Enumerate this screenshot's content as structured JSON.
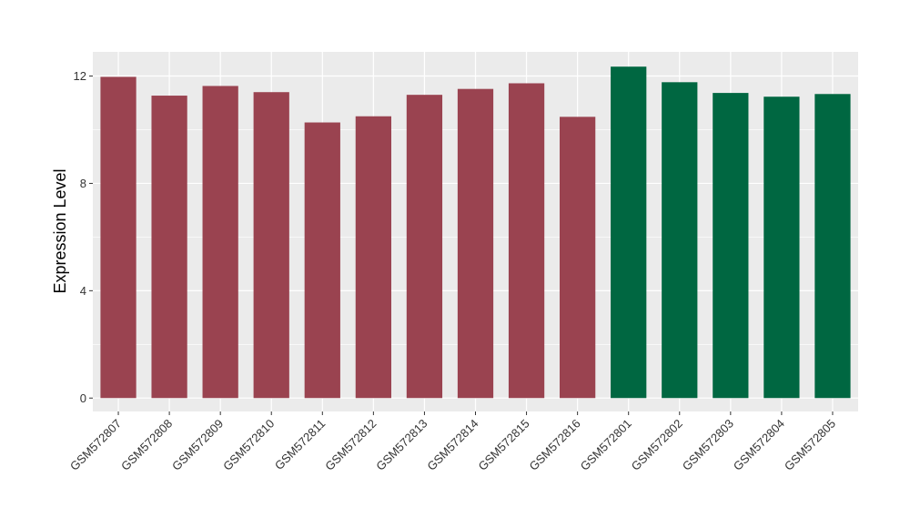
{
  "chart_data": {
    "type": "bar",
    "ylabel": "Expression Level",
    "xlabel": "",
    "ylim": [
      -0.5,
      12.9
    ],
    "yticks": [
      0,
      4,
      8,
      12
    ],
    "grid": true,
    "categories": [
      "GSM572807",
      "GSM572808",
      "GSM572809",
      "GSM572810",
      "GSM572811",
      "GSM572812",
      "GSM572813",
      "GSM572814",
      "GSM572815",
      "GSM572816",
      "GSM572801",
      "GSM572802",
      "GSM572803",
      "GSM572804",
      "GSM572805"
    ],
    "values": [
      11.97,
      11.27,
      11.63,
      11.4,
      10.27,
      10.5,
      11.3,
      11.52,
      11.73,
      10.48,
      12.35,
      11.77,
      11.37,
      11.23,
      11.33
    ],
    "bar_colors": [
      "#9a4350",
      "#9a4350",
      "#9a4350",
      "#9a4350",
      "#9a4350",
      "#9a4350",
      "#9a4350",
      "#9a4350",
      "#9a4350",
      "#9a4350",
      "#006741",
      "#006741",
      "#006741",
      "#006741",
      "#006741"
    ],
    "panel_background": "#ebebeb",
    "grid_color": "#ffffff"
  }
}
